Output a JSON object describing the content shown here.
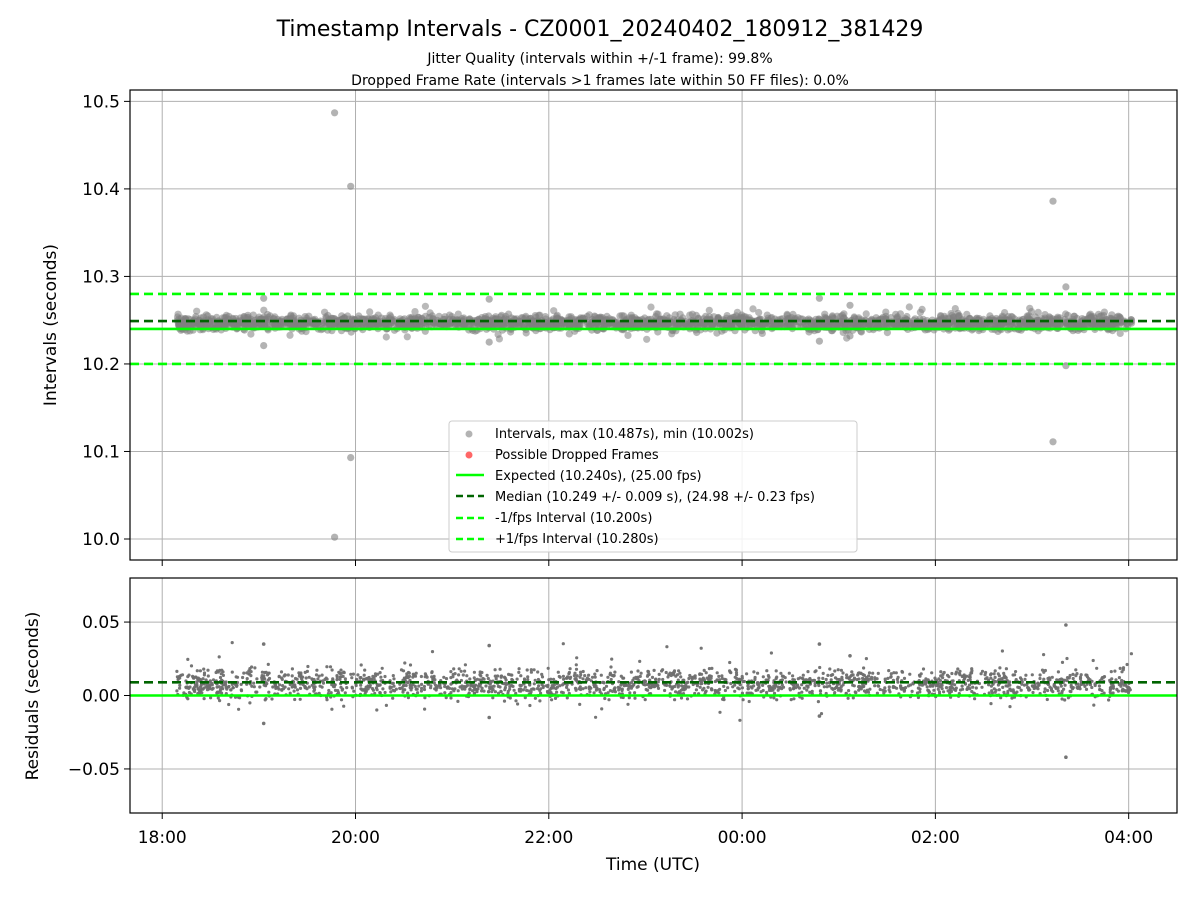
{
  "title": "Timestamp Intervals - CZ0001_20240402_180912_381429",
  "subtitle_lines": [
    "Jitter Quality (intervals within +/-1 frame): 99.8%",
    "Dropped Frame Rate (intervals >1 frames late within 50 FF files): 0.0%"
  ],
  "colors": {
    "points": "#808080",
    "residual_points": "#6e6e6e",
    "dropped": "#ff0000",
    "expected": "#00ff00",
    "median": "#006400",
    "interval_bounds": "#00ff00",
    "grid": "#b0b0b0"
  },
  "chart_data": [
    {
      "type": "scatter",
      "panel": "intervals",
      "xlabel": "",
      "ylabel": "Intervals (seconds)",
      "x_range": [
        "2024-04-02 17:40",
        "2024-04-03 04:30"
      ],
      "ylim": [
        9.976,
        10.513
      ],
      "y_ticks": [
        10.0,
        10.1,
        10.2,
        10.3,
        10.4,
        10.5
      ],
      "y_tick_labels": [
        "10.0",
        "10.1",
        "10.2",
        "10.3",
        "10.4",
        "10.5"
      ],
      "grid": true,
      "legend_position": "lower-center",
      "legend": [
        {
          "label": "Intervals, max (10.487s), min (10.002s)",
          "kind": "marker",
          "color": "#808080"
        },
        {
          "label": "Possible Dropped Frames",
          "kind": "marker",
          "color": "#ff0000"
        },
        {
          "label": "Expected (10.240s), (25.00 fps)",
          "kind": "solid",
          "color": "#00ff00"
        },
        {
          "label": "Median (10.249 +/- 0.009 s), (24.98 +/- 0.23 fps)",
          "kind": "dashed",
          "color": "#006400"
        },
        {
          "label": "-1/fps Interval (10.200s)",
          "kind": "dashed",
          "color": "#00ff00"
        },
        {
          "label": "+1/fps Interval (10.280s)",
          "kind": "dashed",
          "color": "#00ff00"
        }
      ],
      "reference_lines": {
        "expected": 10.24,
        "median": 10.249,
        "minus_one_frame": 10.2,
        "plus_one_frame": 10.28
      },
      "band": {
        "start": "2024-04-02 18:09",
        "end": "2024-04-03 04:02",
        "center": 10.247,
        "spread": 0.005,
        "count": 2200
      },
      "outliers": [
        {
          "x": "2024-04-02 19:47",
          "y": 10.487
        },
        {
          "x": "2024-04-02 19:57",
          "y": 10.403
        },
        {
          "x": "2024-04-02 19:57",
          "y": 10.093
        },
        {
          "x": "2024-04-02 19:47",
          "y": 10.002
        },
        {
          "x": "2024-04-02 19:03",
          "y": 10.275
        },
        {
          "x": "2024-04-02 19:03",
          "y": 10.221
        },
        {
          "x": "2024-04-02 21:23",
          "y": 10.274
        },
        {
          "x": "2024-04-02 21:23",
          "y": 10.225
        },
        {
          "x": "2024-04-03 00:48",
          "y": 10.275
        },
        {
          "x": "2024-04-03 00:48",
          "y": 10.226
        },
        {
          "x": "2024-04-03 01:07",
          "y": 10.267
        },
        {
          "x": "2024-04-03 01:07",
          "y": 10.232
        },
        {
          "x": "2024-04-03 03:13",
          "y": 10.386
        },
        {
          "x": "2024-04-03 03:13",
          "y": 10.111
        },
        {
          "x": "2024-04-03 03:21",
          "y": 10.288
        },
        {
          "x": "2024-04-03 03:21",
          "y": 10.198
        }
      ]
    },
    {
      "type": "scatter",
      "panel": "residuals",
      "xlabel": "Time (UTC)",
      "ylabel": "Residuals (seconds)",
      "x_range": [
        "2024-04-02 17:40",
        "2024-04-03 04:30"
      ],
      "ylim": [
        -0.08,
        0.08
      ],
      "y_ticks": [
        -0.05,
        0.0,
        0.05
      ],
      "y_tick_labels": [
        "−0.05",
        "0.00",
        "0.05"
      ],
      "x_ticks": [
        "2024-04-02 18:00",
        "2024-04-02 20:00",
        "2024-04-02 22:00",
        "2024-04-03 00:00",
        "2024-04-03 02:00",
        "2024-04-03 04:00"
      ],
      "x_tick_labels": [
        "18:00",
        "20:00",
        "22:00",
        "00:00",
        "02:00",
        "04:00"
      ],
      "grid": true,
      "reference_lines": {
        "zero": 0.0,
        "median_offset": 0.009
      },
      "band": {
        "start": "2024-04-02 18:09",
        "end": "2024-04-03 04:02",
        "center": 0.008,
        "spread": 0.006,
        "count": 2000
      },
      "outliers": [
        {
          "x": "2024-04-02 19:03",
          "y": 0.035
        },
        {
          "x": "2024-04-02 19:03",
          "y": -0.019
        },
        {
          "x": "2024-04-02 21:23",
          "y": 0.034
        },
        {
          "x": "2024-04-02 21:23",
          "y": -0.015
        },
        {
          "x": "2024-04-03 00:48",
          "y": 0.035
        },
        {
          "x": "2024-04-03 00:48",
          "y": -0.014
        },
        {
          "x": "2024-04-03 01:07",
          "y": 0.027
        },
        {
          "x": "2024-04-03 03:21",
          "y": 0.048
        },
        {
          "x": "2024-04-03 03:21",
          "y": -0.042
        }
      ]
    }
  ]
}
